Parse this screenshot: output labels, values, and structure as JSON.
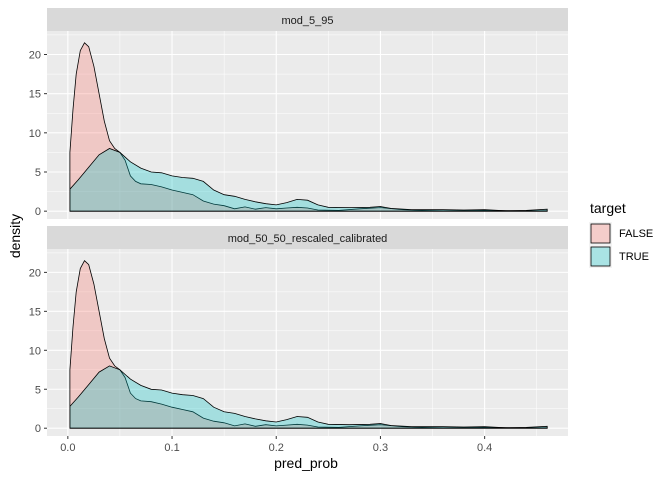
{
  "chart_data": {
    "type": "area",
    "subtype": "density",
    "xlabel": "pred_prob",
    "ylabel": "density",
    "xlim": [
      -0.02,
      0.48
    ],
    "x_ticks": [
      0.0,
      0.1,
      0.2,
      0.3,
      0.4
    ],
    "x_tick_labels": [
      "0.0",
      "0.1",
      "0.2",
      "0.3",
      "0.4"
    ],
    "ylim": [
      -1,
      23
    ],
    "y_ticks": [
      0,
      5,
      10,
      15,
      20
    ],
    "y_tick_labels": [
      "0",
      "5",
      "10",
      "15",
      "20"
    ],
    "grid": true,
    "legend": {
      "title": "target",
      "position": "right",
      "entries": [
        {
          "label": "FALSE",
          "color": "#F8766D"
        },
        {
          "label": "TRUE",
          "color": "#00BFC4"
        }
      ]
    },
    "panels": [
      {
        "strip": "mod_5_95",
        "series": [
          {
            "name": "FALSE",
            "color": "#F8766D",
            "points": [
              [
                0.002,
                7.5
              ],
              [
                0.005,
                13
              ],
              [
                0.008,
                17.5
              ],
              [
                0.012,
                20.5
              ],
              [
                0.016,
                21.5
              ],
              [
                0.02,
                21
              ],
              [
                0.025,
                18.5
              ],
              [
                0.03,
                15
              ],
              [
                0.035,
                11.5
              ],
              [
                0.04,
                9
              ],
              [
                0.045,
                8
              ],
              [
                0.05,
                7.5
              ],
              [
                0.055,
                6.5
              ],
              [
                0.06,
                4.5
              ],
              [
                0.065,
                3.8
              ],
              [
                0.07,
                3.5
              ],
              [
                0.08,
                3.4
              ],
              [
                0.09,
                3.1
              ],
              [
                0.1,
                2.7
              ],
              [
                0.11,
                2.4
              ],
              [
                0.12,
                2.1
              ],
              [
                0.13,
                1.3
              ],
              [
                0.14,
                0.9
              ],
              [
                0.15,
                0.7
              ],
              [
                0.16,
                0.3
              ],
              [
                0.17,
                0.55
              ],
              [
                0.18,
                0.25
              ],
              [
                0.19,
                0.45
              ],
              [
                0.2,
                0.3
              ],
              [
                0.21,
                0.4
              ],
              [
                0.22,
                0.5
              ],
              [
                0.23,
                0.4
              ],
              [
                0.24,
                0.15
              ],
              [
                0.26,
                0.1
              ],
              [
                0.28,
                0.3
              ],
              [
                0.3,
                0.45
              ],
              [
                0.32,
                0.2
              ],
              [
                0.34,
                0.1
              ],
              [
                0.36,
                0.05
              ],
              [
                0.4,
                0.1
              ],
              [
                0.44,
                0.05
              ],
              [
                0.46,
                0.05
              ]
            ]
          },
          {
            "name": "TRUE",
            "color": "#00BFC4",
            "points": [
              [
                0.002,
                2.8
              ],
              [
                0.01,
                4
              ],
              [
                0.02,
                5.6
              ],
              [
                0.03,
                7.2
              ],
              [
                0.04,
                8
              ],
              [
                0.05,
                7.5
              ],
              [
                0.06,
                6.3
              ],
              [
                0.07,
                5.5
              ],
              [
                0.08,
                5
              ],
              [
                0.09,
                4.9
              ],
              [
                0.1,
                4.5
              ],
              [
                0.11,
                4.3
              ],
              [
                0.12,
                4.2
              ],
              [
                0.13,
                3.8
              ],
              [
                0.14,
                2.7
              ],
              [
                0.15,
                2.1
              ],
              [
                0.16,
                1.9
              ],
              [
                0.17,
                1.5
              ],
              [
                0.18,
                1.2
              ],
              [
                0.19,
                0.95
              ],
              [
                0.2,
                0.8
              ],
              [
                0.21,
                1.1
              ],
              [
                0.22,
                1.5
              ],
              [
                0.23,
                1.4
              ],
              [
                0.24,
                0.8
              ],
              [
                0.25,
                0.5
              ],
              [
                0.27,
                0.45
              ],
              [
                0.29,
                0.5
              ],
              [
                0.3,
                0.6
              ],
              [
                0.31,
                0.35
              ],
              [
                0.33,
                0.2
              ],
              [
                0.36,
                0.2
              ],
              [
                0.38,
                0.15
              ],
              [
                0.4,
                0.2
              ],
              [
                0.42,
                0.05
              ],
              [
                0.44,
                0.1
              ],
              [
                0.46,
                0.25
              ]
            ]
          }
        ]
      },
      {
        "strip": "mod_50_50_rescaled_calibrated",
        "series": [
          {
            "name": "FALSE",
            "color": "#F8766D",
            "points": [
              [
                0.002,
                7.5
              ],
              [
                0.005,
                13
              ],
              [
                0.008,
                17.5
              ],
              [
                0.012,
                20.5
              ],
              [
                0.016,
                21.5
              ],
              [
                0.02,
                21
              ],
              [
                0.025,
                18.5
              ],
              [
                0.03,
                15
              ],
              [
                0.035,
                11.5
              ],
              [
                0.04,
                9
              ],
              [
                0.045,
                8
              ],
              [
                0.05,
                7.5
              ],
              [
                0.055,
                6.5
              ],
              [
                0.06,
                4.5
              ],
              [
                0.065,
                3.8
              ],
              [
                0.07,
                3.5
              ],
              [
                0.08,
                3.4
              ],
              [
                0.09,
                3.1
              ],
              [
                0.1,
                2.7
              ],
              [
                0.11,
                2.4
              ],
              [
                0.12,
                2.1
              ],
              [
                0.13,
                1.3
              ],
              [
                0.14,
                0.9
              ],
              [
                0.15,
                0.7
              ],
              [
                0.16,
                0.3
              ],
              [
                0.17,
                0.55
              ],
              [
                0.18,
                0.25
              ],
              [
                0.19,
                0.45
              ],
              [
                0.2,
                0.3
              ],
              [
                0.21,
                0.4
              ],
              [
                0.22,
                0.5
              ],
              [
                0.23,
                0.4
              ],
              [
                0.24,
                0.15
              ],
              [
                0.26,
                0.1
              ],
              [
                0.28,
                0.3
              ],
              [
                0.3,
                0.45
              ],
              [
                0.32,
                0.2
              ],
              [
                0.34,
                0.1
              ],
              [
                0.36,
                0.05
              ],
              [
                0.4,
                0.1
              ],
              [
                0.44,
                0.05
              ],
              [
                0.46,
                0.05
              ]
            ]
          },
          {
            "name": "TRUE",
            "color": "#00BFC4",
            "points": [
              [
                0.002,
                2.8
              ],
              [
                0.01,
                4
              ],
              [
                0.02,
                5.6
              ],
              [
                0.03,
                7.2
              ],
              [
                0.04,
                8
              ],
              [
                0.05,
                7.5
              ],
              [
                0.06,
                6.3
              ],
              [
                0.07,
                5.5
              ],
              [
                0.08,
                5
              ],
              [
                0.09,
                4.9
              ],
              [
                0.1,
                4.5
              ],
              [
                0.11,
                4.3
              ],
              [
                0.12,
                4.2
              ],
              [
                0.13,
                3.8
              ],
              [
                0.14,
                2.7
              ],
              [
                0.15,
                2.1
              ],
              [
                0.16,
                1.9
              ],
              [
                0.17,
                1.5
              ],
              [
                0.18,
                1.2
              ],
              [
                0.19,
                0.95
              ],
              [
                0.2,
                0.8
              ],
              [
                0.21,
                1.1
              ],
              [
                0.22,
                1.5
              ],
              [
                0.23,
                1.4
              ],
              [
                0.24,
                0.8
              ],
              [
                0.25,
                0.5
              ],
              [
                0.27,
                0.45
              ],
              [
                0.29,
                0.5
              ],
              [
                0.3,
                0.6
              ],
              [
                0.31,
                0.35
              ],
              [
                0.33,
                0.2
              ],
              [
                0.36,
                0.2
              ],
              [
                0.38,
                0.15
              ],
              [
                0.4,
                0.2
              ],
              [
                0.42,
                0.05
              ],
              [
                0.44,
                0.1
              ],
              [
                0.46,
                0.25
              ]
            ]
          }
        ]
      }
    ]
  }
}
